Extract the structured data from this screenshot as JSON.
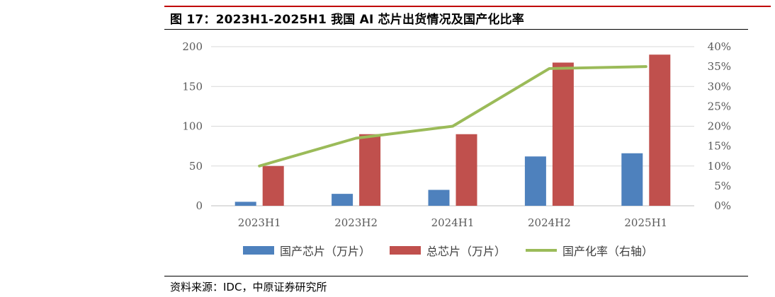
{
  "figure": {
    "title": "图 17：2023H1-2025H1 我国 AI 芯片出货情况及国产化比率",
    "source": "资料来源：IDC，中原证券研究所"
  },
  "colors": {
    "domestic": "#4e81bd",
    "total": "#c0504d",
    "ratio": "#9bbb59",
    "accent_rule": "#c00000"
  },
  "chart_data": {
    "type": "bar",
    "categories": [
      "2023H1",
      "2023H2",
      "2024H1",
      "2024H2",
      "2025H1"
    ],
    "series": [
      {
        "name": "国产芯片（万片）",
        "type": "bar",
        "axis": "left",
        "values": [
          5,
          15,
          20,
          62,
          66
        ]
      },
      {
        "name": "总芯片（万片）",
        "type": "bar",
        "axis": "left",
        "values": [
          50,
          90,
          90,
          180,
          190
        ]
      },
      {
        "name": "国产化率（右轴）",
        "type": "line",
        "axis": "right",
        "values": [
          0.1,
          0.17,
          0.2,
          0.345,
          0.35
        ]
      }
    ],
    "y_left": {
      "min": 0,
      "max": 200,
      "ticks": [
        "0",
        "50",
        "100",
        "150",
        "200"
      ]
    },
    "y_right": {
      "min": 0,
      "max": 0.4,
      "ticks": [
        "0%",
        "5%",
        "10%",
        "15%",
        "20%",
        "25%",
        "30%",
        "35%",
        "40%"
      ]
    },
    "grid": true,
    "legend": "bottom"
  }
}
